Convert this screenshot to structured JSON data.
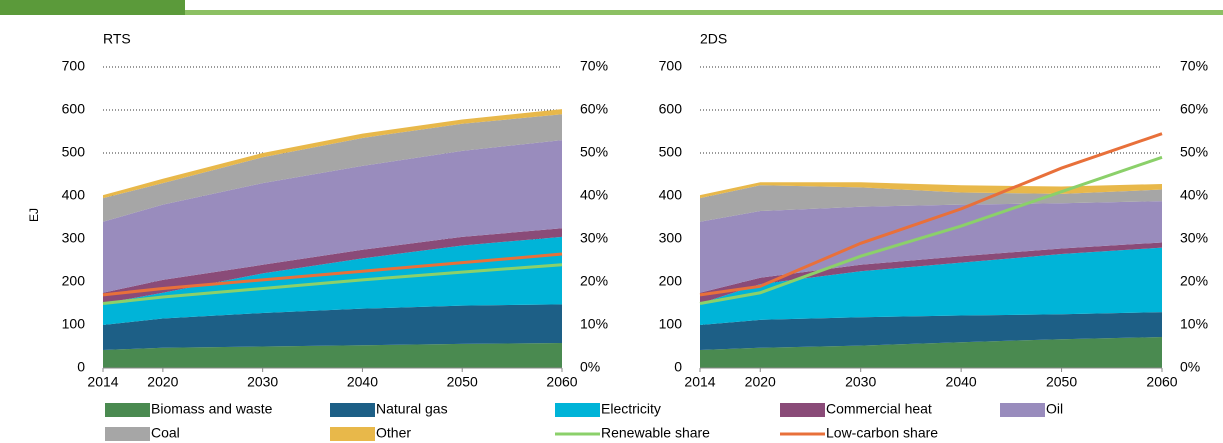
{
  "chart_data": [
    {
      "type": "area",
      "title": "RTS",
      "ylabel": "EJ",
      "x": [
        2014,
        2020,
        2030,
        2040,
        2050,
        2060
      ],
      "xlim": [
        2014,
        2060
      ],
      "xticks": [
        2014,
        2020,
        2030,
        2040,
        2050,
        2060
      ],
      "ylim": [
        0,
        700
      ],
      "yticks": [
        0,
        100,
        200,
        300,
        400,
        500,
        600,
        700
      ],
      "y2lim": [
        0,
        70
      ],
      "y2ticks": [
        {
          "value": 0,
          "label": "0%"
        },
        {
          "value": 10,
          "label": "10%"
        },
        {
          "value": 20,
          "label": "20%"
        },
        {
          "value": 30,
          "label": "30%"
        },
        {
          "value": 40,
          "label": "40%"
        },
        {
          "value": 50,
          "label": "50%"
        },
        {
          "value": 60,
          "label": "60%"
        },
        {
          "value": 70,
          "label": "70%"
        }
      ],
      "grid": true,
      "series": [
        {
          "name": "Biomass and waste",
          "color": "#4a8a50",
          "values": [
            42,
            47,
            50,
            53,
            56,
            58
          ]
        },
        {
          "name": "Natural gas",
          "color": "#1d5f86",
          "values": [
            58,
            68,
            78,
            85,
            89,
            90
          ]
        },
        {
          "name": "Electricity",
          "color": "#00b4d8",
          "values": [
            50,
            60,
            92,
            117,
            140,
            157
          ]
        },
        {
          "name": "Commercial heat",
          "color": "#8a4b78",
          "values": [
            25,
            30,
            20,
            20,
            20,
            20
          ]
        },
        {
          "name": "Oil",
          "color": "#998cbd",
          "values": [
            165,
            175,
            190,
            195,
            200,
            205
          ]
        },
        {
          "name": "Coal",
          "color": "#a6a6a6",
          "values": [
            55,
            50,
            60,
            65,
            63,
            60
          ]
        },
        {
          "name": "Other",
          "color": "#e8b84a",
          "values": [
            7,
            10,
            10,
            10,
            10,
            12
          ]
        },
        {
          "name": "Renewable share",
          "color": "#8bd06a",
          "axis": "y2",
          "values": [
            15,
            16.5,
            18.5,
            20.5,
            22.3,
            24
          ]
        },
        {
          "name": "Low-carbon share",
          "color": "#e8703a",
          "axis": "y2",
          "values": [
            17,
            18.5,
            20.5,
            22.5,
            24.5,
            26.5
          ]
        }
      ]
    },
    {
      "type": "area",
      "title": "2DS",
      "x": [
        2014,
        2020,
        2030,
        2040,
        2050,
        2060
      ],
      "xlim": [
        2014,
        2060
      ],
      "xticks": [
        2014,
        2020,
        2030,
        2040,
        2050,
        2060
      ],
      "ylim": [
        0,
        700
      ],
      "yticks": [
        0,
        100,
        200,
        300,
        400,
        500,
        600,
        700
      ],
      "y2lim": [
        0,
        70
      ],
      "y2ticks": [
        {
          "value": 0,
          "label": "0%"
        },
        {
          "value": 10,
          "label": "10%"
        },
        {
          "value": 20,
          "label": "20%"
        },
        {
          "value": 30,
          "label": "30%"
        },
        {
          "value": 40,
          "label": "40%"
        },
        {
          "value": 50,
          "label": "50%"
        },
        {
          "value": 60,
          "label": "60%"
        },
        {
          "value": 70,
          "label": "70%"
        }
      ],
      "grid": true,
      "series": [
        {
          "name": "Biomass and waste",
          "color": "#4a8a50",
          "values": [
            42,
            47,
            52,
            60,
            67,
            72
          ]
        },
        {
          "name": "Natural gas",
          "color": "#1d5f86",
          "values": [
            58,
            65,
            66,
            62,
            58,
            58
          ]
        },
        {
          "name": "Electricity",
          "color": "#00b4d8",
          "values": [
            50,
            83,
            107,
            123,
            140,
            150
          ]
        },
        {
          "name": "Commercial heat",
          "color": "#8a4b78",
          "values": [
            25,
            15,
            15,
            15,
            13,
            12
          ]
        },
        {
          "name": "Oil",
          "color": "#998cbd",
          "values": [
            165,
            155,
            135,
            120,
            105,
            96
          ]
        },
        {
          "name": "Coal",
          "color": "#a6a6a6",
          "values": [
            55,
            60,
            45,
            28,
            22,
            27
          ]
        },
        {
          "name": "Other",
          "color": "#e8b84a",
          "values": [
            7,
            7,
            12,
            17,
            17,
            13
          ]
        },
        {
          "name": "Renewable share",
          "color": "#8bd06a",
          "axis": "y2",
          "values": [
            15,
            17.5,
            26,
            33,
            41,
            49
          ]
        },
        {
          "name": "Low-carbon share",
          "color": "#e8703a",
          "axis": "y2",
          "values": [
            17,
            19,
            29,
            37,
            46.5,
            54.5
          ]
        }
      ]
    }
  ]
}
